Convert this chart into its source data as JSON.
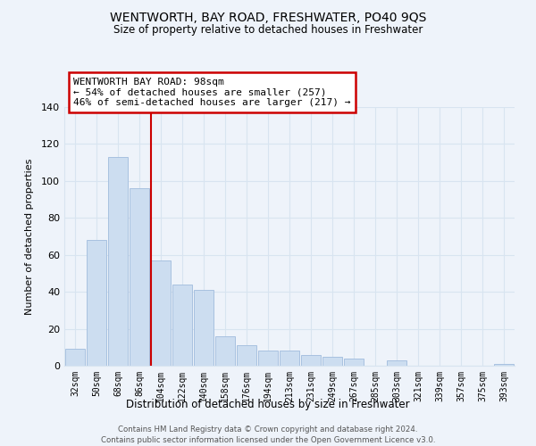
{
  "title": "WENTWORTH, BAY ROAD, FRESHWATER, PO40 9QS",
  "subtitle": "Size of property relative to detached houses in Freshwater",
  "xlabel": "Distribution of detached houses by size in Freshwater",
  "ylabel": "Number of detached properties",
  "categories": [
    "32sqm",
    "50sqm",
    "68sqm",
    "86sqm",
    "104sqm",
    "122sqm",
    "140sqm",
    "158sqm",
    "176sqm",
    "194sqm",
    "213sqm",
    "231sqm",
    "249sqm",
    "267sqm",
    "285sqm",
    "303sqm",
    "321sqm",
    "339sqm",
    "357sqm",
    "375sqm",
    "393sqm"
  ],
  "values": [
    9,
    68,
    113,
    96,
    57,
    44,
    41,
    16,
    11,
    8,
    8,
    6,
    5,
    4,
    0,
    3,
    0,
    0,
    0,
    0,
    1
  ],
  "bar_color": "#ccddf0",
  "bar_edge_color": "#a0bbdd",
  "vline_index": 4,
  "vline_color": "#cc0000",
  "annotation_title": "WENTWORTH BAY ROAD: 98sqm",
  "annotation_line1": "← 54% of detached houses are smaller (257)",
  "annotation_line2": "46% of semi-detached houses are larger (217) →",
  "annotation_box_color": "white",
  "annotation_box_edge": "#cc0000",
  "ylim": [
    0,
    140
  ],
  "yticks": [
    0,
    20,
    40,
    60,
    80,
    100,
    120,
    140
  ],
  "grid_color": "#d8e4f0",
  "footer1": "Contains HM Land Registry data © Crown copyright and database right 2024.",
  "footer2": "Contains public sector information licensed under the Open Government Licence v3.0.",
  "background_color": "#eef3fa"
}
